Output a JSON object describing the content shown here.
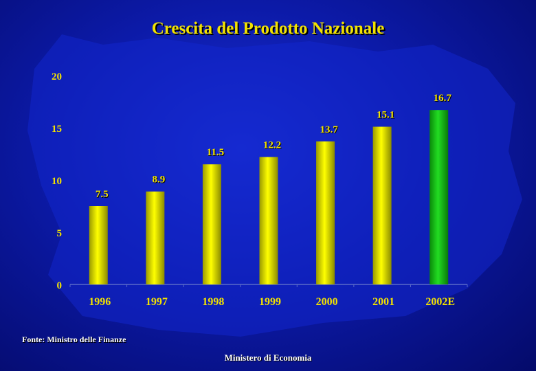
{
  "slide": {
    "title": "Crescita del Prodotto Nazionale",
    "source": "Fonte: Ministro delle Finanze",
    "footer": "Ministero di Economia"
  },
  "colors": {
    "background": "#0c1aa8",
    "bar_yellow": "#ffff00",
    "bar_green": "#22dd22",
    "label": "#f2e200"
  },
  "chart_data": {
    "type": "bar",
    "title": "Crescita del Prodotto Nazionale",
    "xlabel": "",
    "ylabel": "",
    "categories": [
      "1996",
      "1997",
      "1998",
      "1999",
      "2000",
      "2001",
      "2002E"
    ],
    "values": [
      7.5,
      8.9,
      11.5,
      12.2,
      13.7,
      15.1,
      16.7
    ],
    "highlight": [
      false,
      false,
      false,
      false,
      false,
      false,
      true
    ],
    "ylim": [
      0,
      20
    ],
    "yticks": [
      0,
      5,
      10,
      15,
      20
    ],
    "grid": false,
    "legend": "none"
  }
}
